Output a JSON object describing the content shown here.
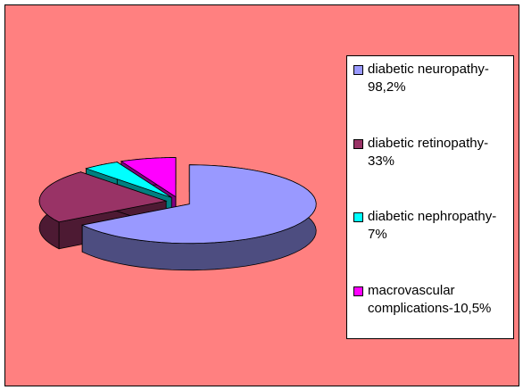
{
  "chart_data": {
    "type": "pie",
    "categories": [
      "diabetic neuropathy-98,2%",
      "diabetic retinopathy-33%",
      "diabetic nephropathy-7%",
      "macrovascular complications-10,5%"
    ],
    "values": [
      98.2,
      33,
      7,
      10.5
    ],
    "colors": [
      "#9999ff",
      "#993366",
      "#00ffff",
      "#ff00ff"
    ],
    "legend": "right"
  }
}
